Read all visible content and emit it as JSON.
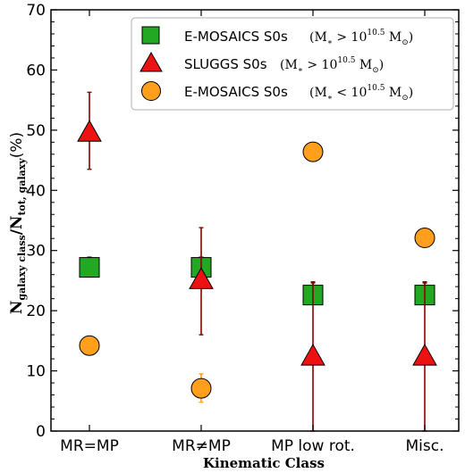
{
  "chart_data": {
    "type": "scatter",
    "categories": [
      "MR=MP",
      "MR≠MP",
      "MP low rot.",
      "Misc."
    ],
    "xlabel": "Kinematic Class",
    "ylabel": "N_galaxy class / N_tot, galaxy (%)",
    "ylabel_parts": {
      "n": "N",
      "sub1": "galaxy class",
      "slash": "/N",
      "sub2": "tot, galaxy",
      "unit": "(%)"
    },
    "ylim": [
      0,
      70
    ],
    "yticks": [
      0,
      10,
      20,
      30,
      40,
      50,
      60,
      70
    ],
    "grid": false,
    "legend_position": "top-right",
    "series": [
      {
        "name": "E-MOSAICS S0s",
        "mass_label": "(M∗ > 10^10.5 M⊙)",
        "mass_parts": {
          "lhs": "(M",
          "star": "∗",
          "op": " > 10",
          "exp": "10.5",
          "mid": " M",
          "sun": "⊙",
          "rhs": ")"
        },
        "marker": "square",
        "color": "#22a822",
        "err_color": "#8b0000",
        "values": [
          27.2,
          27.2,
          22.6,
          22.6
        ],
        "err_low": [
          1.5,
          1.5,
          1.5,
          1.5
        ],
        "err_high": [
          1.7,
          1.7,
          2.2,
          2.2
        ]
      },
      {
        "name": "SLUGGS S0s",
        "mass_label": "(M∗ > 10^10.5 M⊙)",
        "mass_parts": {
          "lhs": "(M",
          "star": "∗",
          "op": " > 10",
          "exp": "10.5",
          "mid": " M",
          "sun": "⊙",
          "rhs": ")"
        },
        "marker": "triangle",
        "color": "#ee1111",
        "err_color": "#8b0000",
        "values": [
          49.5,
          25.0,
          12.3,
          12.3
        ],
        "err_low": [
          6.0,
          9.0,
          12.3,
          12.3
        ],
        "err_high": [
          6.8,
          8.8,
          12.3,
          12.3
        ]
      },
      {
        "name": "E-MOSAICS S0s",
        "mass_label": "(M∗ < 10^10.5 M⊙)",
        "mass_parts": {
          "lhs": "(M",
          "star": "∗",
          "op": " < 10",
          "exp": "10.5",
          "mid": " M",
          "sun": "⊙",
          "rhs": ")"
        },
        "marker": "circle",
        "color": "#ff9f1c",
        "err_color": "#ff9f1c",
        "values": [
          14.2,
          7.1,
          46.4,
          32.1
        ],
        "err_low": [
          1.0,
          2.3,
          0,
          0
        ],
        "err_high": [
          1.5,
          2.4,
          0,
          0
        ]
      }
    ]
  }
}
